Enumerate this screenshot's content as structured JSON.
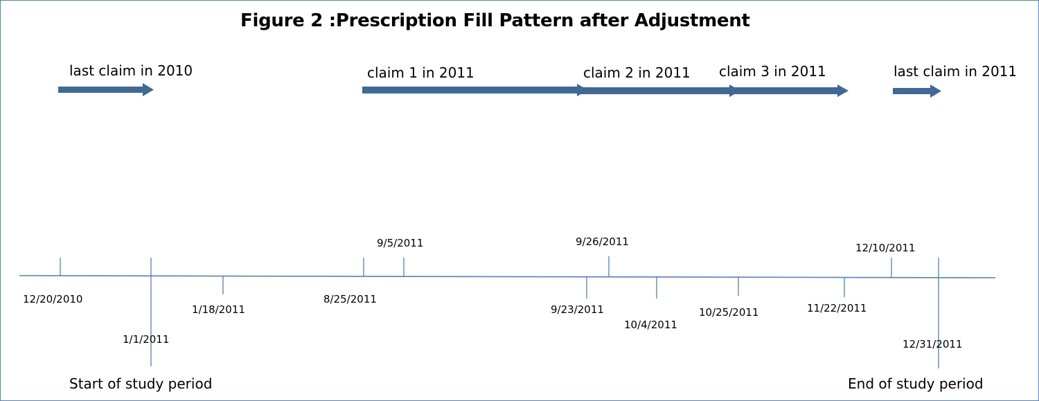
{
  "title": "Figure 2 :Prescription Fill Pattern after Adjustment",
  "accent_color": "#4f81bd",
  "arrow_color": "#3f6998",
  "claims": {
    "last_2010": "last claim in 2010",
    "claim1": "claim 1 in 2011",
    "claim2": "claim 2 in 2011",
    "claim3": "claim 3 in 2011",
    "last_2011": "last claim in 2011"
  },
  "dates": {
    "d_12_20_2010": "12/20/2010",
    "d_1_1_2011": "1/1/2011",
    "d_1_18_2011": "1/18/2011",
    "d_8_25_2011": "8/25/2011",
    "d_9_5_2011": "9/5/2011",
    "d_9_23_2011": "9/23/2011",
    "d_9_26_2011": "9/26/2011",
    "d_10_4_2011": "10/4/2011",
    "d_10_25_2011": "10/25/2011",
    "d_11_22_2011": "11/22/2011",
    "d_12_10_2011": "12/10/2011",
    "d_12_31_2011": "12/31/2011"
  },
  "captions": {
    "start": "Start of study period",
    "end": "End of study period"
  }
}
